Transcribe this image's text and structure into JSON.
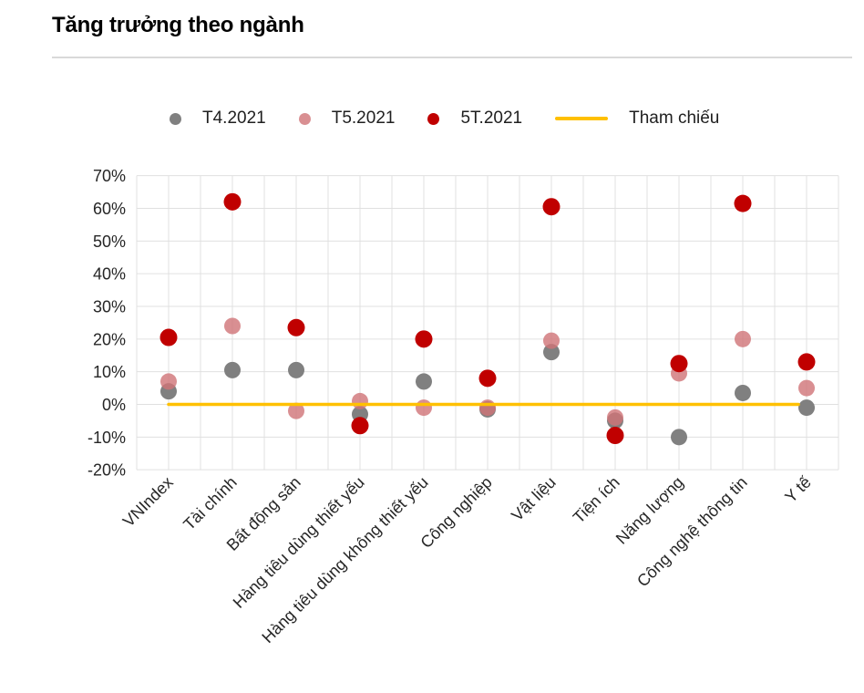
{
  "page": {
    "title": "Tăng trưởng theo ngành"
  },
  "chart_data": {
    "type": "scatter",
    "title": "Tăng trưởng theo ngành",
    "categories": [
      "VNIndex",
      "Tài chính",
      "Bất động sản",
      "Hàng tiêu dùng thiết yếu",
      "Hàng tiêu dùng không thiết yếu",
      "Công nghiệp",
      "Vật liệu",
      "Tiện ích",
      "Năng lượng",
      "Công nghệ thông tin",
      "Y tế"
    ],
    "series": [
      {
        "name": "T4.2021",
        "color": "#808080",
        "fill_opacity": 1,
        "values": [
          4,
          10.5,
          10.5,
          -3,
          7,
          -1.5,
          16,
          -5,
          -10,
          3.5,
          -1
        ]
      },
      {
        "name": "T5.2021",
        "color": "#D07377",
        "fill_opacity": 0.8,
        "values": [
          7,
          24,
          -2,
          1,
          -1,
          -1,
          19.5,
          -4,
          9.5,
          20,
          5
        ]
      },
      {
        "name": "5T.2021",
        "color": "#C00000",
        "fill_opacity": 1,
        "values": [
          20.5,
          62,
          23.5,
          -6.5,
          20,
          8,
          60.5,
          -9.5,
          12.5,
          61.5,
          13
        ]
      }
    ],
    "reference_line": {
      "name": "Tham chiếu",
      "value": 0,
      "color": "#FFC000"
    },
    "xlabel": "",
    "ylabel": "",
    "ylim": [
      -20,
      70
    ],
    "y_tick_step": 10,
    "y_ticks": [
      "70%",
      "60%",
      "50%",
      "40%",
      "30%",
      "20%",
      "10%",
      "0%",
      "-10%",
      "-20%"
    ],
    "grid": true,
    "legend_position": "top"
  }
}
